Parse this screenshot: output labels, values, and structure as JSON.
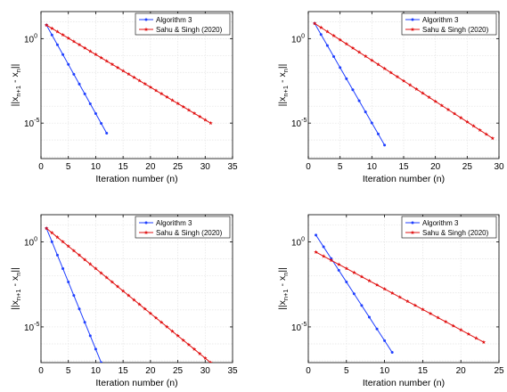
{
  "chart_data": [
    {
      "type": "line",
      "xlabel": "Iteration number (n)",
      "ylabel": {
        "base": "||x",
        "sub1": "n+1",
        "mid": " - x",
        "sub2": "n",
        "end": "||"
      },
      "xlim": [
        0,
        35
      ],
      "xticks": [
        0,
        5,
        10,
        15,
        20,
        25,
        30,
        35
      ],
      "ylim_log10": [
        -7.1,
        1.6
      ],
      "yticks": [
        {
          "exp": 0,
          "label": "10",
          "sup": "0"
        },
        {
          "exp": -5,
          "label": "10",
          "sup": "-5"
        }
      ],
      "y_scale": "log",
      "grid": true,
      "legend": "top-right",
      "series": [
        {
          "name": "Algorithm 3",
          "color": "#1f3fff",
          "marker": "dot",
          "x": [
            1,
            12
          ],
          "log10_y": [
            0.8,
            -5.6
          ]
        },
        {
          "name": "Sahu & Singh  (2020)",
          "color": "#e01010",
          "marker": "star",
          "x": [
            1,
            31
          ],
          "log10_y": [
            0.8,
            -5.0
          ]
        }
      ]
    },
    {
      "type": "line",
      "xlabel": "Iteration number (n)",
      "ylabel": {
        "base": "||x",
        "sub1": "n+1",
        "mid": " - x",
        "sub2": "n",
        "end": "||"
      },
      "xlim": [
        0,
        30
      ],
      "xticks": [
        0,
        5,
        10,
        15,
        20,
        25,
        30
      ],
      "ylim_log10": [
        -7.1,
        1.6
      ],
      "yticks": [
        {
          "exp": 0,
          "label": "10",
          "sup": "0"
        },
        {
          "exp": -5,
          "label": "10",
          "sup": "-5"
        }
      ],
      "y_scale": "log",
      "grid": true,
      "legend": "top-right",
      "series": [
        {
          "name": "Algorithm 3",
          "color": "#1f3fff",
          "marker": "dot",
          "x": [
            1,
            12
          ],
          "log10_y": [
            0.9,
            -6.3
          ]
        },
        {
          "name": "Sahu & Singh  (2020)",
          "color": "#e01010",
          "marker": "star",
          "x": [
            1,
            29
          ],
          "log10_y": [
            0.9,
            -5.9
          ]
        }
      ]
    },
    {
      "type": "line",
      "xlabel": "Iteration number (n)",
      "ylabel": {
        "base": "||x",
        "sub1": "n+1",
        "mid": " - x",
        "sub2": "n",
        "end": "||"
      },
      "xlim": [
        0,
        35
      ],
      "xticks": [
        0,
        5,
        10,
        15,
        20,
        25,
        30,
        35
      ],
      "ylim_log10": [
        -7.1,
        1.6
      ],
      "yticks": [
        {
          "exp": 0,
          "label": "10",
          "sup": "0"
        },
        {
          "exp": -5,
          "label": "10",
          "sup": "-5"
        }
      ],
      "y_scale": "log",
      "grid": true,
      "legend": "top-right",
      "series": [
        {
          "name": "Algorithm 3",
          "color": "#1f3fff",
          "marker": "dot",
          "x": [
            1,
            11
          ],
          "log10_y": [
            0.8,
            -7.1
          ]
        },
        {
          "name": "Sahu & Singh  (2020)",
          "color": "#e01010",
          "marker": "star",
          "x": [
            1,
            31
          ],
          "log10_y": [
            0.8,
            -7.1
          ]
        }
      ]
    },
    {
      "type": "line",
      "xlabel": "Iteration number (n)",
      "ylabel": {
        "base": "||x",
        "sub1": "n+1",
        "mid": " - x",
        "sub2": "n",
        "end": "||"
      },
      "xlim": [
        0,
        25
      ],
      "xticks": [
        0,
        5,
        10,
        15,
        20,
        25
      ],
      "ylim_log10": [
        -7.1,
        1.6
      ],
      "yticks": [
        {
          "exp": 0,
          "label": "10",
          "sup": "0"
        },
        {
          "exp": -5,
          "label": "10",
          "sup": "-5"
        }
      ],
      "y_scale": "log",
      "grid": true,
      "legend": "top-right",
      "series": [
        {
          "name": "Algorithm 3",
          "color": "#1f3fff",
          "marker": "dot",
          "x": [
            1,
            11
          ],
          "log10_y": [
            0.4,
            -6.5
          ]
        },
        {
          "name": "Sahu & Singh  (2020)",
          "color": "#e01010",
          "marker": "star",
          "x": [
            1,
            23
          ],
          "log10_y": [
            -0.6,
            -5.9
          ]
        }
      ]
    }
  ]
}
